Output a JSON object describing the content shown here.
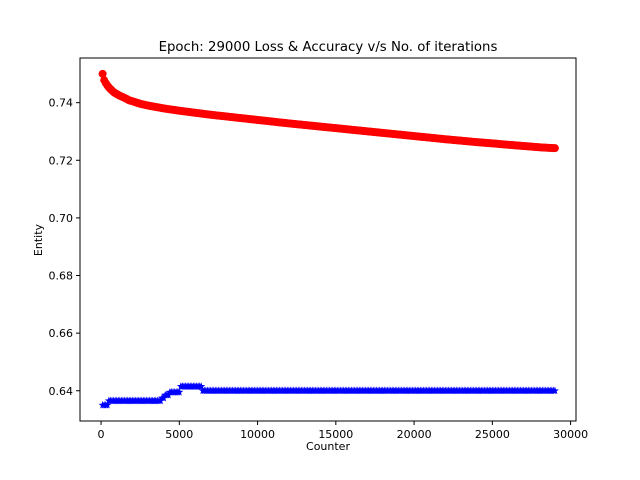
{
  "chart_data": {
    "type": "scatter",
    "title": "Epoch: 29000 Loss & Accuracy v/s No. of iterations",
    "xlabel": "Counter",
    "ylabel": "Entity",
    "xlim": [
      -1345,
      30345
    ],
    "ylim": [
      0.6295,
      0.7555
    ],
    "xticks": [
      0,
      5000,
      10000,
      15000,
      20000,
      25000,
      30000
    ],
    "xtick_labels": [
      "0",
      "5000",
      "10000",
      "15000",
      "20000",
      "25000",
      "30000"
    ],
    "yticks": [
      0.64,
      0.66,
      0.68,
      0.7,
      0.72,
      0.74
    ],
    "ytick_labels": [
      "0.64",
      "0.66",
      "0.68",
      "0.70",
      "0.72",
      "0.74"
    ],
    "grid": false,
    "legend": "none",
    "x_start": 100,
    "x_end": 29000,
    "x_step": 100,
    "series": [
      {
        "marker": "circle",
        "color": "#ff0000",
        "points": [
          [
            100,
            0.75
          ],
          [
            200,
            0.7478
          ],
          [
            300,
            0.7468
          ],
          [
            400,
            0.746
          ],
          [
            500,
            0.7453
          ],
          [
            600,
            0.7447
          ],
          [
            700,
            0.7442
          ],
          [
            800,
            0.7437
          ],
          [
            900,
            0.7433
          ],
          [
            1000,
            0.743
          ],
          [
            1200,
            0.7424
          ],
          [
            1400,
            0.7419
          ],
          [
            1600,
            0.7414
          ],
          [
            1800,
            0.7408
          ],
          [
            2000,
            0.7405
          ],
          [
            2500,
            0.7396
          ],
          [
            3000,
            0.739
          ],
          [
            3500,
            0.7385
          ],
          [
            4000,
            0.738
          ],
          [
            5000,
            0.7372
          ],
          [
            6000,
            0.7365
          ],
          [
            7000,
            0.7358
          ],
          [
            8000,
            0.7352
          ],
          [
            9000,
            0.7346
          ],
          [
            10000,
            0.734
          ],
          [
            12000,
            0.7328
          ],
          [
            14000,
            0.7317
          ],
          [
            16000,
            0.7306
          ],
          [
            18000,
            0.7295
          ],
          [
            20000,
            0.7284
          ],
          [
            22000,
            0.7273
          ],
          [
            24000,
            0.7263
          ],
          [
            26000,
            0.7254
          ],
          [
            28000,
            0.7245
          ],
          [
            29000,
            0.7242
          ]
        ]
      },
      {
        "marker": "star",
        "color": "#0000ff",
        "points": [
          [
            100,
            0.635
          ],
          [
            400,
            0.635
          ],
          [
            500,
            0.6365
          ],
          [
            3800,
            0.6365
          ],
          [
            3900,
            0.6375
          ],
          [
            4100,
            0.6385
          ],
          [
            4400,
            0.6395
          ],
          [
            5000,
            0.6395
          ],
          [
            5100,
            0.6415
          ],
          [
            6400,
            0.6415
          ],
          [
            6500,
            0.64
          ],
          [
            29000,
            0.64
          ]
        ]
      }
    ]
  }
}
